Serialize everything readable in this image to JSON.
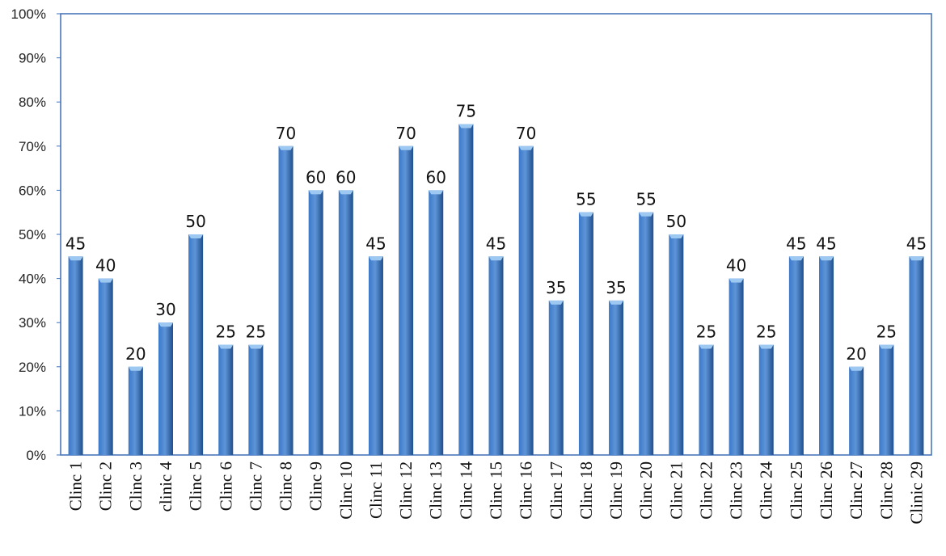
{
  "chart_data": {
    "type": "bar",
    "title": "",
    "xlabel": "",
    "ylabel": "",
    "ylim": [
      0,
      100
    ],
    "y_ticks": [
      "0%",
      "10%",
      "20%",
      "30%",
      "40%",
      "50%",
      "60%",
      "70%",
      "80%",
      "90%",
      "100%"
    ],
    "grid": false,
    "legend": "none",
    "categories": [
      "Clinc 1",
      "Clinc 2",
      "Clinc 3",
      "clinic 4",
      "Clinc 5",
      "Clinc 6",
      "Clinc 7",
      "Clinc 8",
      "Clinc 9",
      "Clinc 10",
      "Clinc 11",
      "Clinc 12",
      "Clinc 13",
      "Clinc 14",
      "Clinc 15",
      "Clinc 16",
      "Clinc 17",
      "Clinc 18",
      "Clinc 19",
      "Clinc 20",
      "Clinc 21",
      "Clinc 22",
      "Clinc 23",
      "Clinc 24",
      "Clinc 25",
      "Clinc 26",
      "Clinc 27",
      "Clinc 28",
      "Clinic 29"
    ],
    "values": [
      45,
      40,
      20,
      30,
      50,
      25,
      25,
      70,
      60,
      60,
      45,
      70,
      60,
      75,
      45,
      70,
      35,
      55,
      35,
      55,
      50,
      25,
      40,
      25,
      45,
      45,
      20,
      25,
      45
    ],
    "data_labels": [
      "45",
      "40",
      "20",
      "30",
      "50",
      "25",
      "25",
      "70",
      "60",
      "60",
      "45",
      "70",
      "60",
      "75",
      "45",
      "70",
      "35",
      "55",
      "35",
      "55",
      "50",
      "25",
      "40",
      "25",
      "45",
      "45",
      "20",
      "25",
      "45"
    ],
    "colors": {
      "bar_dark": "#1F4E8C",
      "bar_mid": "#3B78C8",
      "bar_light": "#5E95D8",
      "bar_cap": "#9CC8F2",
      "border": "#3F6FB5"
    }
  }
}
